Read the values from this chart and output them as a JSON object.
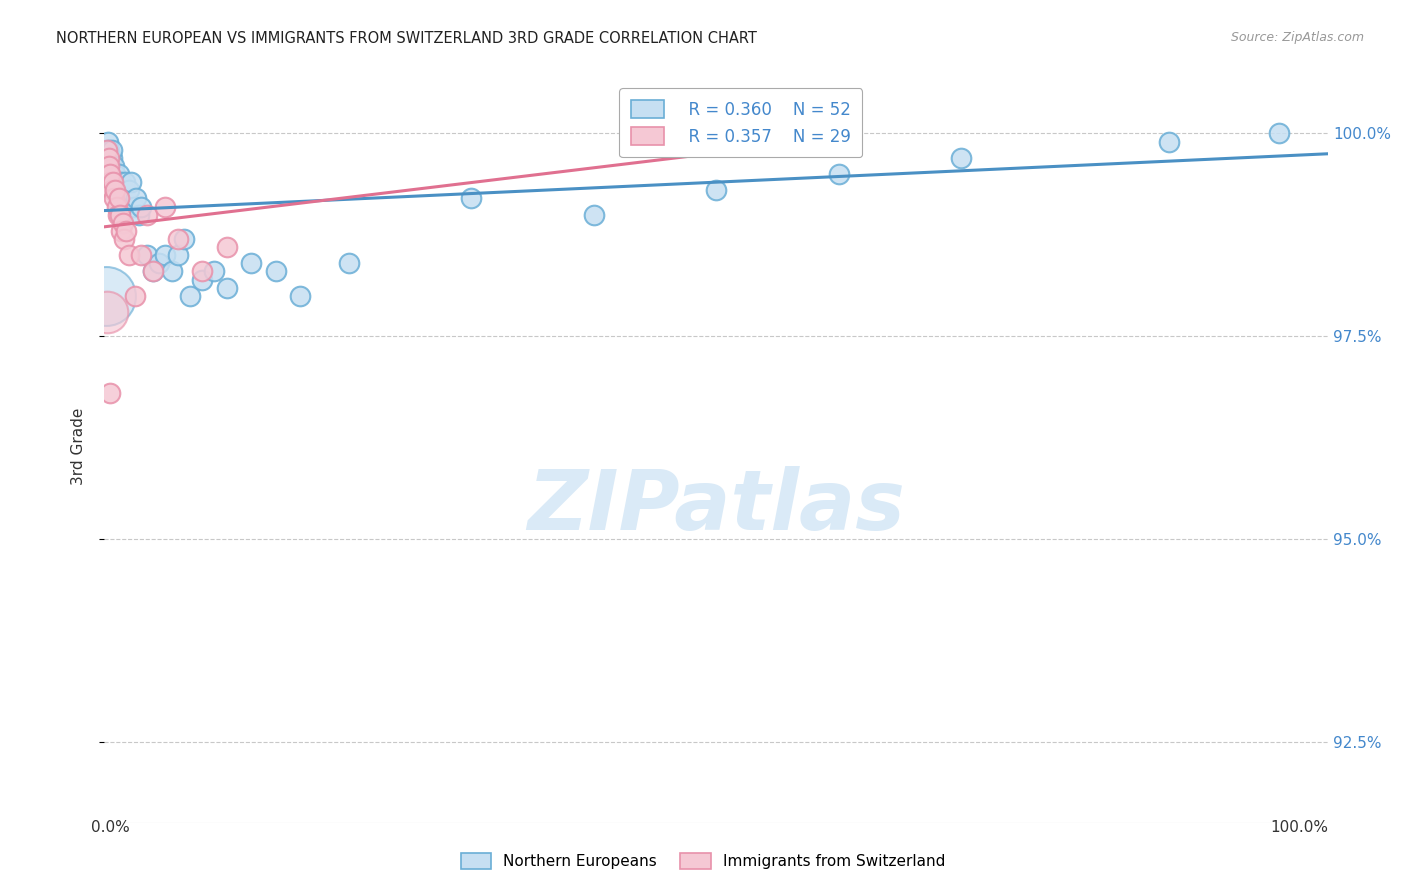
{
  "title": "NORTHERN EUROPEAN VS IMMIGRANTS FROM SWITZERLAND 3RD GRADE CORRELATION CHART",
  "source": "Source: ZipAtlas.com",
  "ylabel": "3rd Grade",
  "y_ticks": [
    92.5,
    95.0,
    97.5,
    100.0
  ],
  "y_tick_labels": [
    "92.5%",
    "95.0%",
    "97.5%",
    "100.0%"
  ],
  "x_min": 0.0,
  "x_max": 1.0,
  "y_min": 91.5,
  "y_max": 100.8,
  "blue_R": 0.36,
  "blue_N": 52,
  "pink_R": 0.357,
  "pink_N": 29,
  "blue_color": "#6aaed6",
  "blue_face": "#c6dff2",
  "pink_color": "#e891aa",
  "pink_face": "#f5c8d4",
  "line_blue": "#4a90c4",
  "line_pink": "#e07090",
  "watermark_color": "#daeaf7",
  "blue_scatter_x": [
    0.001,
    0.002,
    0.002,
    0.003,
    0.003,
    0.004,
    0.004,
    0.005,
    0.005,
    0.006,
    0.006,
    0.007,
    0.008,
    0.008,
    0.009,
    0.01,
    0.011,
    0.012,
    0.013,
    0.014,
    0.015,
    0.016,
    0.017,
    0.018,
    0.02,
    0.022,
    0.024,
    0.026,
    0.028,
    0.03,
    0.035,
    0.04,
    0.045,
    0.05,
    0.055,
    0.06,
    0.065,
    0.07,
    0.08,
    0.09,
    0.1,
    0.12,
    0.14,
    0.16,
    0.2,
    0.3,
    0.4,
    0.5,
    0.6,
    0.7,
    0.87,
    0.96
  ],
  "blue_scatter_y": [
    99.5,
    99.7,
    99.8,
    99.6,
    99.9,
    99.7,
    99.8,
    99.5,
    99.6,
    99.7,
    99.8,
    99.5,
    99.6,
    99.4,
    99.5,
    99.3,
    99.4,
    99.5,
    99.3,
    99.4,
    99.2,
    99.3,
    99.4,
    99.2,
    99.3,
    99.4,
    99.1,
    99.2,
    99.0,
    99.1,
    98.5,
    98.3,
    98.4,
    98.5,
    98.3,
    98.5,
    98.7,
    98.0,
    98.2,
    98.3,
    98.1,
    98.4,
    98.3,
    98.0,
    98.4,
    99.2,
    99.0,
    99.3,
    99.5,
    99.7,
    99.9,
    100.0
  ],
  "blue_large_x": [
    0.001
  ],
  "blue_large_y": [
    98.0
  ],
  "pink_scatter_x": [
    0.001,
    0.002,
    0.002,
    0.003,
    0.004,
    0.004,
    0.005,
    0.005,
    0.006,
    0.007,
    0.008,
    0.009,
    0.01,
    0.011,
    0.012,
    0.013,
    0.014,
    0.015,
    0.016,
    0.018,
    0.02,
    0.025,
    0.03,
    0.035,
    0.04,
    0.05,
    0.06,
    0.08,
    0.1
  ],
  "pink_scatter_y": [
    99.4,
    99.6,
    99.8,
    99.5,
    99.7,
    99.6,
    99.4,
    99.5,
    99.3,
    99.4,
    99.2,
    99.3,
    99.1,
    99.0,
    99.2,
    99.0,
    98.8,
    98.9,
    98.7,
    98.8,
    98.5,
    98.0,
    98.5,
    99.0,
    98.3,
    99.1,
    98.7,
    98.3,
    98.6
  ],
  "pink_large_x": [
    0.002
  ],
  "pink_large_y": [
    97.8
  ],
  "pink_outlier_x": [
    0.005
  ],
  "pink_outlier_y": [
    96.8
  ],
  "blue_trendline_x": [
    0.0,
    1.0
  ],
  "blue_trendline_y": [
    99.05,
    99.75
  ],
  "pink_trendline_x": [
    0.0,
    0.55
  ],
  "pink_trendline_y": [
    98.85,
    99.85
  ]
}
